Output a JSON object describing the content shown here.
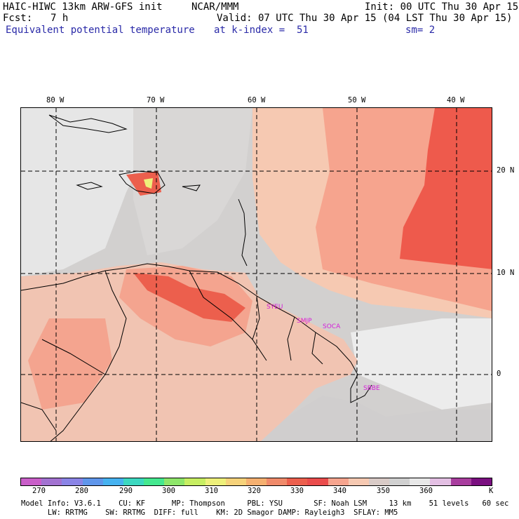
{
  "header": {
    "model": "HAIC-HIWC 13km ARW-GFS init",
    "org": "NCAR/MMM",
    "init": "Init: 00 UTC Thu 30 Apr 15",
    "fcst_label": "Fcst:",
    "fcst_value": "7 h",
    "valid": "Valid: 07 UTC Thu 30 Apr 15 (04 LST Thu 30 Apr 15)",
    "field": "Equivalent potential temperature",
    "level": "at k-index =  51",
    "smooth": "sm= 2"
  },
  "axes": {
    "lon_labels": [
      "80 W",
      "70 W",
      "60 W",
      "50 W",
      "40 W"
    ],
    "lat_labels": [
      "20 N",
      "10 N",
      "0"
    ]
  },
  "stations": [
    "SYEU",
    "SMJP",
    "SOCA",
    "SBBE"
  ],
  "legend": {
    "colors": [
      "#c95ec9",
      "#a272d1",
      "#8a84e6",
      "#5f96eb",
      "#46b2f0",
      "#3cd8c0",
      "#44e88f",
      "#8ee66a",
      "#c7ee62",
      "#eef07a",
      "#f6d27a",
      "#f5b070",
      "#f08a6a",
      "#ec5f4d",
      "#ea4c4c",
      "#f6a48e",
      "#f6c9b2",
      "#d9cbc7",
      "#d0d0d0",
      "#e8e8e8",
      "#e3bfe3",
      "#a83d9e",
      "#7a0f80"
    ],
    "tick_labels": [
      "270",
      "280",
      "290",
      "300",
      "310",
      "320",
      "330",
      "340",
      "350",
      "360"
    ],
    "unit": "K"
  },
  "footer": {
    "line1": "Model Info: V3.6.1    CU: KF      MP: Thompson     PBL: YSU       SF: Noah LSM     13 km    51 levels   60 sec",
    "line2": "      LW: RRTMG    SW: RRTMG  DIFF: full    KM: 2D Smagor DAMP: Rayleigh3  SFLAY: MM5"
  }
}
